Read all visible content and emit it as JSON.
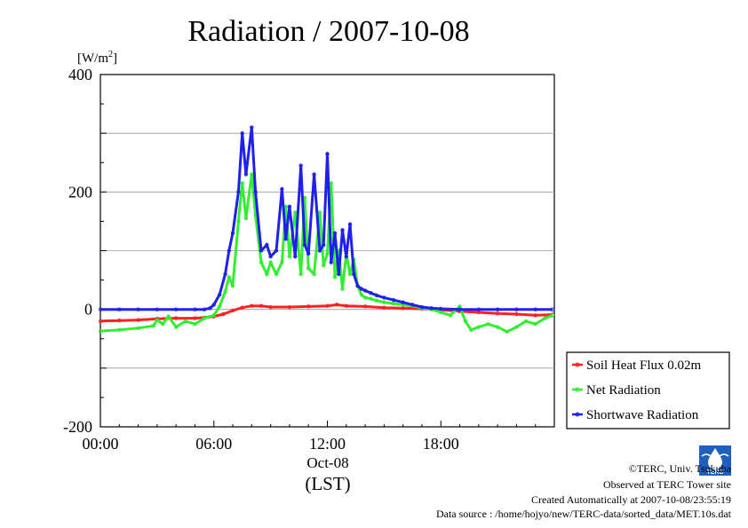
{
  "chart_data": {
    "type": "line",
    "title": "Radiation / 2007-10-08",
    "ylabel_unit": "[W/m",
    "ylabel_unit_sup": "2",
    "ylabel_unit_close": "]",
    "xlabel_date": "Oct-08",
    "xlabel": "(LST)",
    "ylim": [
      -200,
      400
    ],
    "xlim": [
      0,
      24
    ],
    "y_ticks": [
      400,
      200,
      0,
      -200
    ],
    "y_tick_labels": [
      "400",
      "200",
      "0",
      "-200"
    ],
    "x_ticks": [
      0,
      6,
      12,
      18
    ],
    "x_tick_labels": [
      "00:00",
      "06:00",
      "12:00",
      "18:00"
    ],
    "grid": "horizontal",
    "legend_position": "right",
    "series": [
      {
        "name": "Soil Heat Flux 0.02m",
        "color": "#ff2020",
        "x": [
          0,
          1,
          2,
          3,
          4,
          5,
          5.5,
          6,
          6.5,
          7,
          7.5,
          8,
          8.5,
          9,
          10,
          11,
          12,
          12.5,
          13,
          14,
          15,
          16,
          17,
          18,
          19,
          20,
          21,
          22,
          23,
          23.9
        ],
        "y": [
          -20,
          -19,
          -18,
          -16,
          -15,
          -15,
          -14,
          -12,
          -8,
          -2,
          3,
          6,
          6,
          4,
          4,
          5,
          6,
          8,
          6,
          5,
          3,
          2,
          1,
          -1,
          -3,
          -5,
          -7,
          -8,
          -10,
          -9
        ]
      },
      {
        "name": "Net Radiation",
        "color": "#33ee33",
        "x": [
          0,
          1,
          2,
          2.8,
          3,
          3.3,
          3.6,
          4,
          4.5,
          5,
          5.5,
          6,
          6.3,
          6.6,
          6.8,
          7,
          7.3,
          7.5,
          7.7,
          8,
          8.2,
          8.5,
          8.8,
          9,
          9.3,
          9.6,
          9.8,
          10,
          10.3,
          10.6,
          10.8,
          11,
          11.3,
          11.6,
          11.8,
          12,
          12.2,
          12.4,
          12.6,
          12.8,
          13,
          13.2,
          13.4,
          13.6,
          13.8,
          14,
          14.3,
          14.6,
          15,
          15.5,
          16,
          16.5,
          17,
          17.5,
          18,
          18.5,
          19,
          19.3,
          19.6,
          20,
          20.5,
          21,
          21.5,
          22,
          22.5,
          23,
          23.5,
          23.9
        ],
        "y": [
          -37,
          -35,
          -32,
          -28,
          -18,
          -25,
          -12,
          -30,
          -20,
          -25,
          -15,
          -10,
          5,
          30,
          55,
          40,
          150,
          215,
          155,
          230,
          160,
          80,
          60,
          80,
          60,
          80,
          175,
          90,
          165,
          60,
          190,
          70,
          60,
          165,
          75,
          95,
          215,
          55,
          100,
          35,
          95,
          60,
          85,
          40,
          25,
          20,
          18,
          15,
          12,
          10,
          8,
          6,
          2,
          0,
          -5,
          -10,
          5,
          -20,
          -35,
          -30,
          -25,
          -30,
          -38,
          -30,
          -20,
          -25,
          -15,
          -10
        ]
      },
      {
        "name": "Shortwave Radiation",
        "color": "#2020ee",
        "x": [
          0,
          1,
          2,
          3,
          4,
          5,
          5.5,
          5.8,
          6,
          6.3,
          6.6,
          6.8,
          7,
          7.3,
          7.5,
          7.7,
          8,
          8.2,
          8.5,
          8.8,
          9,
          9.3,
          9.6,
          9.8,
          10,
          10.3,
          10.6,
          10.8,
          11,
          11.3,
          11.6,
          11.8,
          12,
          12.2,
          12.4,
          12.6,
          12.8,
          13,
          13.2,
          13.4,
          13.6,
          13.8,
          14,
          14.3,
          14.6,
          15,
          15.5,
          16,
          16.5,
          17,
          17.5,
          18,
          19,
          20,
          21,
          22,
          23,
          23.9
        ],
        "y": [
          0,
          0,
          0,
          0,
          0,
          0,
          0,
          2,
          8,
          25,
          60,
          100,
          130,
          200,
          300,
          230,
          310,
          200,
          100,
          110,
          90,
          100,
          205,
          120,
          175,
          90,
          245,
          110,
          95,
          230,
          100,
          110,
          265,
          80,
          130,
          60,
          135,
          90,
          145,
          60,
          40,
          35,
          32,
          28,
          24,
          20,
          16,
          12,
          8,
          4,
          2,
          1,
          0,
          0,
          0,
          0,
          0,
          0
        ]
      }
    ],
    "notes": {
      "copyright": "©TERC, Univ. Tsukuba",
      "observed": "Observed at TERC Tower site",
      "created": "Created Automatically at 2007-10-08/23:55:19",
      "source": "Data source : /home/hojyo/new/TERC-data/sorted_data/MET.10s.dat",
      "logo_text": "TERC"
    }
  }
}
